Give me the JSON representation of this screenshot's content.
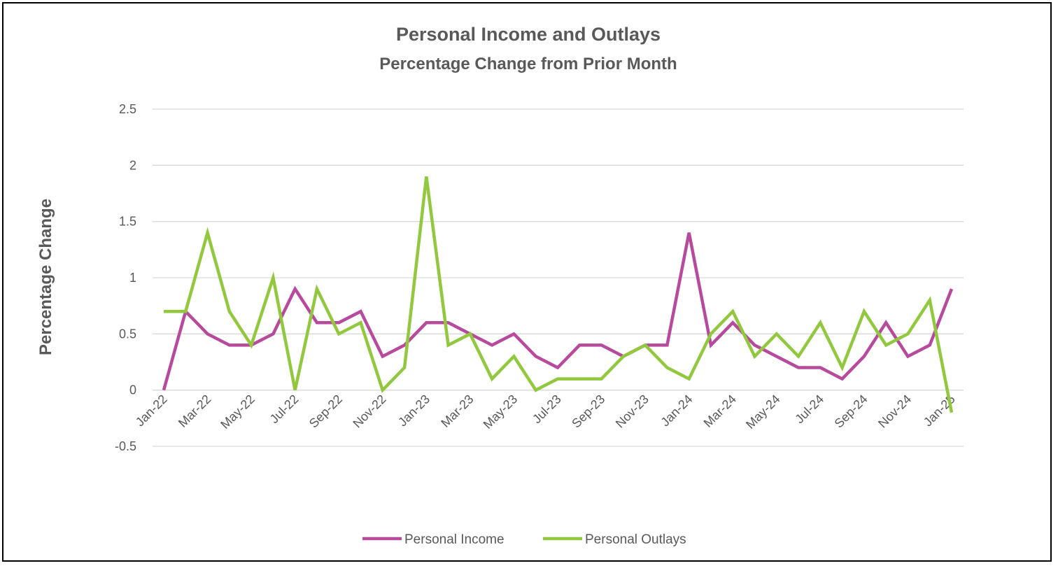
{
  "chart_data": {
    "type": "line",
    "title": "Personal Income and Outlays",
    "subtitle": "Percentage Change from Prior Month",
    "xlabel": "",
    "ylabel": "Percentage Change",
    "ylim": [
      -0.5,
      2.5
    ],
    "yticks": [
      "2.5",
      "2",
      "1.5",
      "1",
      "0.5",
      "0",
      "-0.5"
    ],
    "grid": true,
    "legend": "bottom",
    "x": [
      "Jan-22",
      "Feb-22",
      "Mar-22",
      "Apr-22",
      "May-22",
      "Jun-22",
      "Jul-22",
      "Aug-22",
      "Sep-22",
      "Oct-22",
      "Nov-22",
      "Dec-22",
      "Jan-23",
      "Feb-23",
      "Mar-23",
      "Apr-23",
      "May-23",
      "Jun-23",
      "Jul-23",
      "Aug-23",
      "Sep-23",
      "Oct-23",
      "Nov-23",
      "Dec-23",
      "Jan-24",
      "Feb-24",
      "Mar-24",
      "Apr-24",
      "May-24",
      "Jun-24",
      "Jul-24",
      "Aug-24",
      "Sep-24",
      "Oct-24",
      "Nov-24",
      "Dec-24",
      "Jan-25"
    ],
    "x_tick_labels": [
      "Jan-22",
      "Mar-22",
      "May-22",
      "Jul-22",
      "Sep-22",
      "Nov-22",
      "Jan-23",
      "Mar-23",
      "May-23",
      "Jul-23",
      "Sep-23",
      "Nov-23",
      "Jan-24",
      "Mar-24",
      "May-24",
      "Jul-24",
      "Sep-24",
      "Nov-24",
      "Jan-25"
    ],
    "series": [
      {
        "name": "Personal Income",
        "color": "#b84a9e",
        "values": [
          0.0,
          0.7,
          0.5,
          0.4,
          0.4,
          0.5,
          0.9,
          0.6,
          0.6,
          0.7,
          0.3,
          0.4,
          0.6,
          0.6,
          0.5,
          0.4,
          0.5,
          0.3,
          0.2,
          0.4,
          0.4,
          0.3,
          0.4,
          0.4,
          1.4,
          0.4,
          0.6,
          0.4,
          0.3,
          0.2,
          0.2,
          0.1,
          0.3,
          0.6,
          0.3,
          0.4,
          0.9
        ]
      },
      {
        "name": "Personal Outlays",
        "color": "#92c83e",
        "values": [
          0.7,
          0.7,
          1.4,
          0.7,
          0.4,
          1.0,
          0.0,
          0.9,
          0.5,
          0.6,
          0.0,
          0.2,
          1.9,
          0.4,
          0.5,
          0.1,
          0.3,
          0.0,
          0.1,
          0.1,
          0.1,
          0.3,
          0.4,
          0.2,
          0.1,
          0.5,
          0.7,
          0.3,
          0.5,
          0.3,
          0.6,
          0.2,
          0.7,
          0.4,
          0.5,
          0.8,
          -0.2
        ]
      }
    ]
  }
}
